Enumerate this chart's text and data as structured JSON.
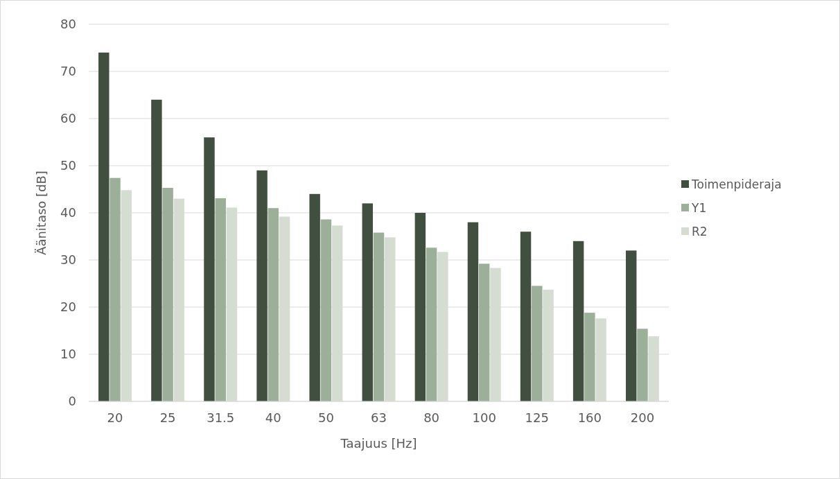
{
  "chart_data": {
    "type": "bar",
    "xlabel": "Taajuus [Hz]",
    "ylabel": "Äänitaso [dB]",
    "categories": [
      "20",
      "25",
      "31.5",
      "40",
      "50",
      "63",
      "80",
      "100",
      "125",
      "160",
      "200"
    ],
    "series": [
      {
        "name": "Toimenpideraja",
        "color": "#404f40",
        "values": [
          74,
          64,
          56,
          49,
          44,
          42,
          40,
          38,
          36,
          34,
          32
        ]
      },
      {
        "name": "Y1",
        "color": "#9caf99",
        "values": [
          47.4,
          45.3,
          43.1,
          41,
          38.6,
          35.8,
          32.6,
          29.2,
          24.5,
          18.8,
          15.4
        ]
      },
      {
        "name": "R2",
        "color": "#d5ddd3",
        "values": [
          44.8,
          43,
          41.1,
          39.2,
          37.3,
          34.8,
          31.7,
          28.3,
          23.7,
          17.6,
          13.8
        ]
      }
    ],
    "ylim": [
      0,
      80
    ],
    "yticks": [
      0,
      10,
      20,
      30,
      40,
      50,
      60,
      70,
      80
    ],
    "grid": "y",
    "legend": "right"
  }
}
